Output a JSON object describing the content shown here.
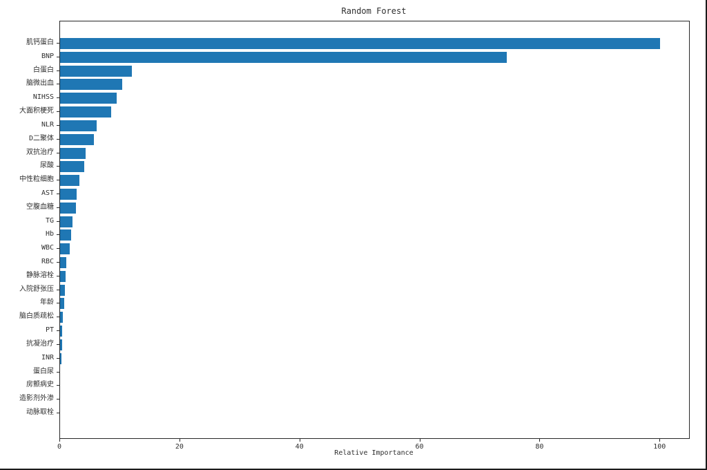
{
  "chart_data": {
    "type": "bar",
    "orientation": "horizontal",
    "title": "Random Forest",
    "xlabel": "Relative Importance",
    "ylabel": "",
    "grid": false,
    "legend": null,
    "bar_color": "#1f77b4",
    "axis_color": "#262626",
    "text_color": "#2e2e2e",
    "xlim": [
      0,
      104.8
    ],
    "xticks": [
      0,
      20,
      40,
      60,
      80,
      100
    ],
    "categories": [
      "肌钙蛋白",
      "BNP",
      "白蛋白",
      "脑微出血",
      "NIHSS",
      "大面积梗死",
      "NLR",
      "D二聚体",
      "双抗治疗",
      "尿酸",
      "中性粒细胞",
      "AST",
      "空腹血糖",
      "TG",
      "Hb",
      "WBC",
      "RBC",
      "静脉溶栓",
      "入院舒张压",
      "年龄",
      "脑白质疏松",
      "PT",
      "抗凝治疗",
      "INR",
      "蛋白尿",
      "房颤病史",
      "造影剂外渗",
      "动脉取栓"
    ],
    "values": [
      100,
      74.4,
      12.0,
      10.3,
      9.4,
      8.5,
      6.1,
      5.6,
      4.2,
      4.0,
      3.2,
      2.8,
      2.6,
      2.1,
      1.8,
      1.6,
      1.0,
      0.95,
      0.8,
      0.65,
      0.45,
      0.35,
      0.3,
      0.25,
      0,
      0,
      0,
      0
    ]
  }
}
